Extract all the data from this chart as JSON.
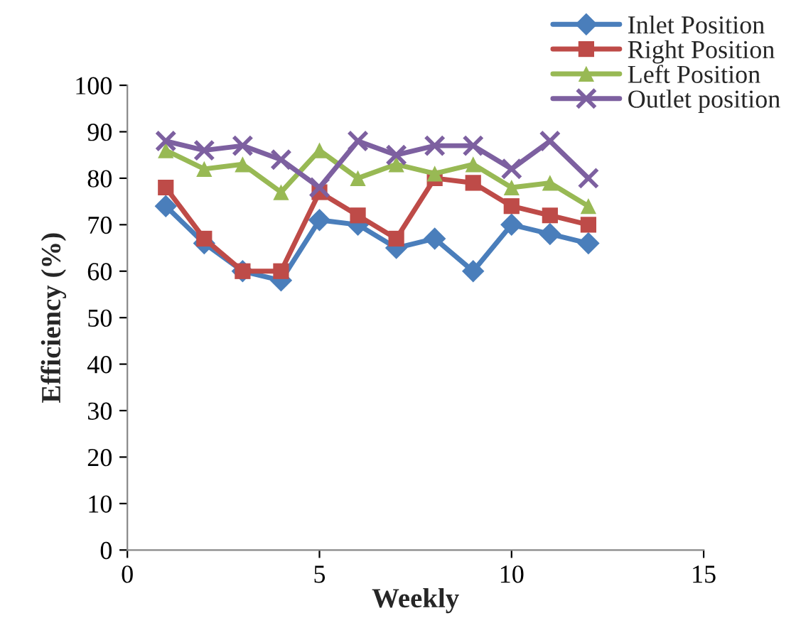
{
  "chart_data": {
    "type": "line",
    "xlabel": "Weekly",
    "ylabel": "Efficiency (%)",
    "x": [
      1,
      2,
      3,
      4,
      5,
      6,
      7,
      8,
      9,
      10,
      11,
      12
    ],
    "xlim": [
      0,
      15
    ],
    "xticks": [
      0,
      5,
      10,
      15
    ],
    "ylim": [
      0,
      100
    ],
    "yticks": [
      0,
      10,
      20,
      30,
      40,
      50,
      60,
      70,
      80,
      90,
      100
    ],
    "grid": false,
    "legend": "top right",
    "series": [
      {
        "name": "Inlet Position",
        "color": "#4a7ebb",
        "marker": "diamond",
        "values": [
          74,
          66,
          60,
          58,
          71,
          70,
          65,
          67,
          60,
          70,
          68,
          66
        ]
      },
      {
        "name": "Right Position",
        "color": "#be4b48",
        "marker": "square",
        "values": [
          78,
          67,
          60,
          60,
          77,
          72,
          67,
          80,
          79,
          74,
          72,
          70
        ]
      },
      {
        "name": "Left Position",
        "color": "#98b954",
        "marker": "triangle",
        "values": [
          86,
          82,
          83,
          77,
          86,
          80,
          83,
          81,
          83,
          78,
          79,
          74
        ]
      },
      {
        "name": "Outlet position",
        "color": "#7d60a0",
        "marker": "cross",
        "values": [
          88,
          86,
          87,
          84,
          78,
          88,
          85,
          87,
          87,
          82,
          88,
          80
        ]
      }
    ]
  }
}
